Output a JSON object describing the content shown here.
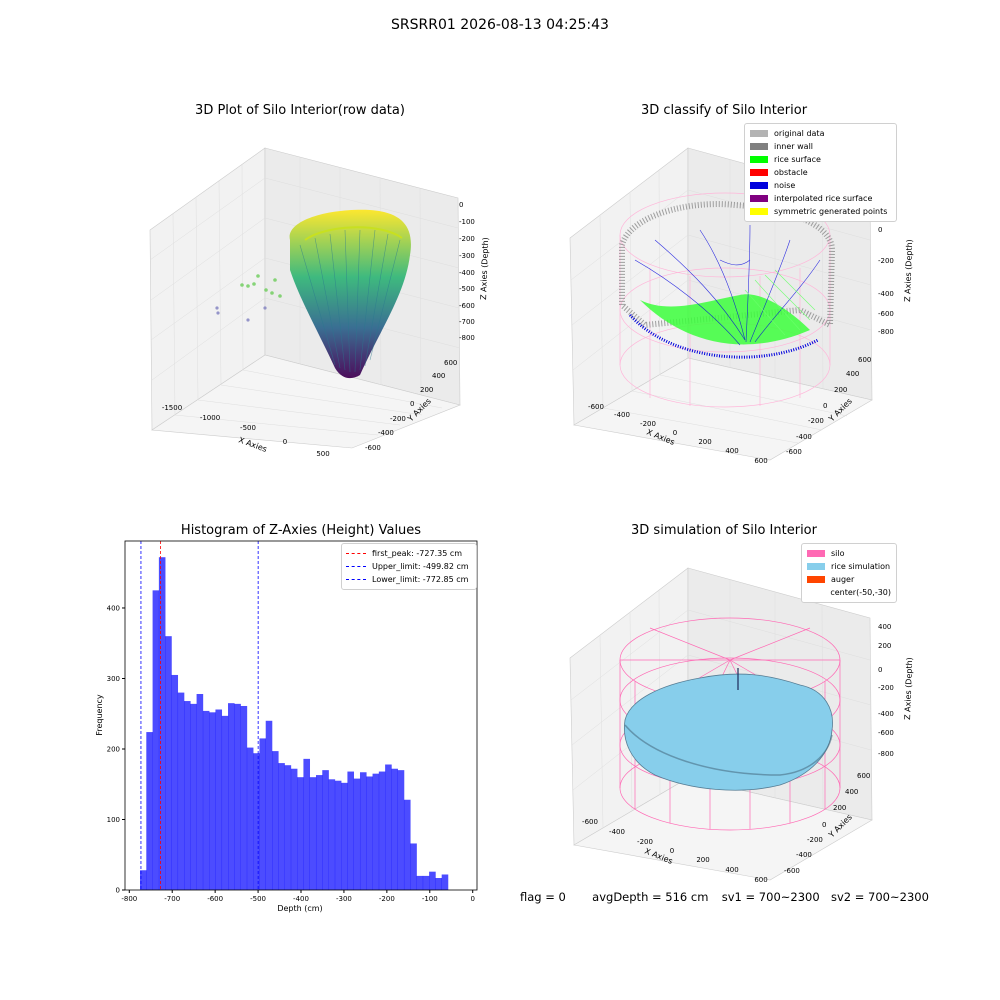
{
  "suptitle": "SRSRR01 2026-08-13 04:25:43",
  "panels": {
    "raw": {
      "title": "3D Plot of Silo Interior(row data)",
      "xlabel": "X Axies",
      "ylabel": "Y Axies",
      "zlabel": "Z Axies (Depth)",
      "xticks": [
        "-1500",
        "-1000",
        "-500",
        "0",
        "500"
      ],
      "yticks": [
        "-600",
        "-400",
        "-200",
        "0",
        "200",
        "400",
        "600"
      ],
      "zticks": [
        "0",
        "-100",
        "-200",
        "-300",
        "-400",
        "-500",
        "-600",
        "-700",
        "-800"
      ]
    },
    "classify": {
      "title": "3D classify of Silo Interior",
      "xlabel": "X Axies",
      "ylabel": "Y Axies",
      "zlabel": "Z Axies (Depth)",
      "xticks": [
        "-600",
        "-400",
        "-200",
        "0",
        "200",
        "400",
        "600"
      ],
      "yticks": [
        "-600",
        "-400",
        "-200",
        "0",
        "200",
        "400",
        "600"
      ],
      "zticks": [
        "200",
        "0",
        "-200",
        "-400",
        "-600",
        "-800"
      ],
      "legend": [
        {
          "label": "original data",
          "color": "#b3b3b3"
        },
        {
          "label": "inner wall",
          "color": "#808080"
        },
        {
          "label": "rice surface",
          "color": "#00ff00"
        },
        {
          "label": "obstacle",
          "color": "#ff0000"
        },
        {
          "label": "noise",
          "color": "#0000dd"
        },
        {
          "label": "interpolated rice surface",
          "color": "#800080"
        },
        {
          "label": "symmetric generated points",
          "color": "#ffff00"
        }
      ]
    },
    "sim": {
      "title": "3D simulation of Silo Interior",
      "xlabel": "X Axies",
      "ylabel": "Y Axies",
      "zlabel": "Z Axies (Depth)",
      "xticks": [
        "-600",
        "-400",
        "-200",
        "0",
        "200",
        "400",
        "600"
      ],
      "yticks": [
        "-600",
        "-400",
        "-200",
        "0",
        "200",
        "400",
        "600"
      ],
      "zticks": [
        "400",
        "200",
        "0",
        "-200",
        "-400",
        "-600",
        "-800"
      ],
      "legend": [
        {
          "label": "silo",
          "color": "#ff69b4"
        },
        {
          "label": "rice simulation",
          "color": "#87ceeb"
        },
        {
          "label": "auger",
          "color": "#ff4500"
        },
        {
          "label": "center(-50,-30)",
          "color": ""
        }
      ]
    }
  },
  "footer": {
    "flag": "flag = 0",
    "avg": "avgDepth = 516 cm",
    "sv1": "sv1 = 700~2300",
    "sv2": "sv2 = 700~2300"
  },
  "chart_data": [
    {
      "type": "bar",
      "title": "Histogram of Z-Axies (Height) Values",
      "xlabel": "Depth (cm)",
      "ylabel": "Frequency",
      "xlim": [
        -810,
        10
      ],
      "ylim": [
        0,
        495
      ],
      "xticks": [
        -800,
        -700,
        -600,
        -500,
        -400,
        -300,
        -200,
        -100,
        0
      ],
      "yticks": [
        0,
        100,
        200,
        300,
        400
      ],
      "bar_color": "#0000ff",
      "bin_start": -775,
      "bin_width": 14.64,
      "values": [
        28,
        224,
        425,
        472,
        360,
        305,
        280,
        268,
        264,
        278,
        254,
        252,
        256,
        247,
        265,
        264,
        261,
        202,
        194,
        215,
        240,
        197,
        180,
        177,
        172,
        160,
        186,
        160,
        163,
        170,
        157,
        155,
        152,
        168,
        158,
        167,
        161,
        165,
        168,
        178,
        172,
        170,
        128,
        66,
        20,
        20,
        26,
        17,
        22
      ],
      "vlines": [
        {
          "label": "first_peak: -727.35 cm",
          "x": -727.35,
          "color": "#ff0000"
        },
        {
          "label": "Upper_limit: -499.82 cm",
          "x": -499.82,
          "color": "#0000ff"
        },
        {
          "label": "Lower_limit: -772.85 cm",
          "x": -772.85,
          "color": "#0000ff"
        }
      ],
      "legend_position": "top-right"
    }
  ]
}
